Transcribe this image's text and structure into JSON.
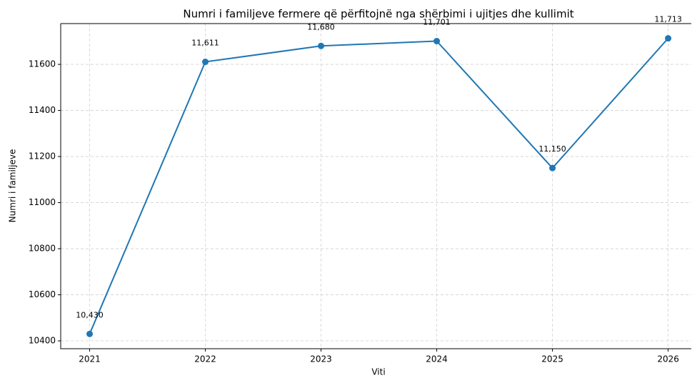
{
  "chart_data": {
    "type": "line",
    "title": "Numri i familjeve fermere që përfitojnë nga shërbimi i ujitjes dhe kullimit",
    "x_label": "Viti",
    "y_label": "Numri i familjeve",
    "x": [
      2021,
      2022,
      2023,
      2024,
      2025,
      2026
    ],
    "series": [
      {
        "name": "Numri i familjeve",
        "color": "#1f77b4",
        "values": [
          10430,
          11611,
          11680,
          11701,
          11150,
          11713
        ],
        "value_labels": [
          "10,430",
          "11,611",
          "11,680",
          "11,701",
          "11,150",
          "11,713"
        ]
      }
    ],
    "xlim": [
      2020.75,
      2026.2
    ],
    "xticks": [
      2021,
      2022,
      2023,
      2024,
      2025,
      2026
    ],
    "ylim": [
      10366,
      11777
    ],
    "yticks": [
      10400,
      10600,
      10800,
      11000,
      11200,
      11400,
      11600
    ],
    "grid": true
  }
}
